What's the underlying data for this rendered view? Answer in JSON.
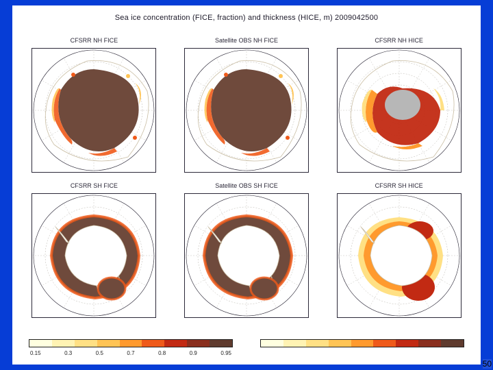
{
  "colors": {
    "page_bg": "#063dd6",
    "panel_bg": "#ffffff",
    "frame": "#2b2838",
    "graticule": "#b9b5ad",
    "arctic_ice": "#6f4a3c",
    "coast": "#c9bda3",
    "land_light": "#f3eee2"
  },
  "main_title": "Sea ice concentration (FICE, fraction) and thickness (HICE, m) 2009042500",
  "subtitles": [
    "CFSRR NH FICE",
    "Satellite OBS NH FICE",
    "CFSRR NH HICE",
    "CFSRR SH FICE",
    "Satellite OBS SH FICE",
    "CFSRR SH HICE"
  ],
  "maps": [
    {
      "pole": "NH",
      "var": "FICE"
    },
    {
      "pole": "NH",
      "var": "FICE"
    },
    {
      "pole": "NH",
      "var": "HICE"
    },
    {
      "pole": "SH",
      "var": "FICE"
    },
    {
      "pole": "SH",
      "var": "FICE"
    },
    {
      "pole": "SH",
      "var": "HICE"
    }
  ],
  "palette_fice": [
    "#ffffe0",
    "#fff3b3",
    "#ffe084",
    "#ffc455",
    "#ff9a2e",
    "#ef5a1a",
    "#c22a13",
    "#8a2f1e",
    "#5f3b2e"
  ],
  "ticks_fice": [
    "0.15",
    "0.3",
    "0.5",
    "0.7",
    "0.8",
    "0.9",
    "0.95"
  ],
  "palette_hice": [
    "#ffffe0",
    "#fff3b3",
    "#ffe084",
    "#ffc455",
    "#ff9a2e",
    "#ef5a1a",
    "#c22a13",
    "#8a2f1e",
    "#5f3b2e"
  ],
  "ticks_hice": [
    "",
    "",
    "",
    "",
    "",
    "",
    ""
  ],
  "page_number": "50"
}
